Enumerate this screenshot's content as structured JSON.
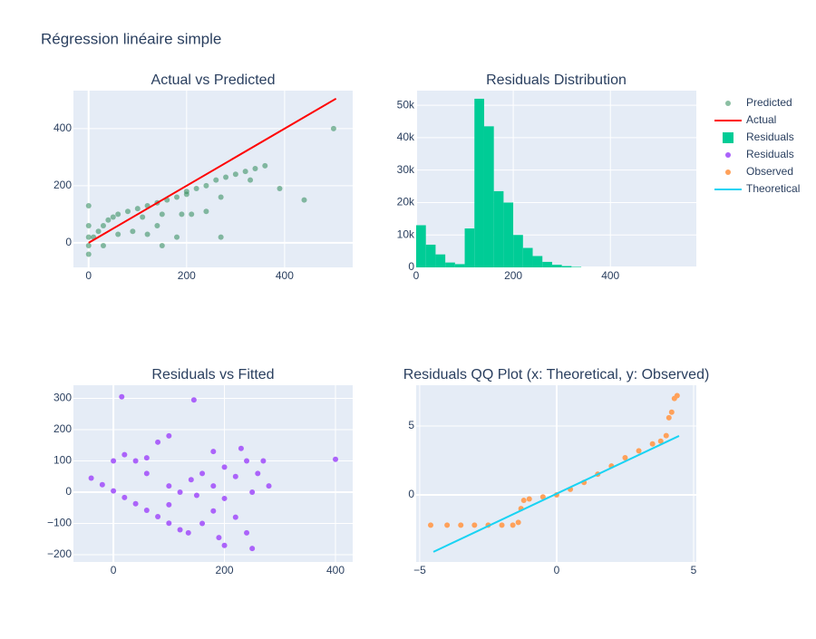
{
  "title": "Régression linéaire simple",
  "chart_data": [
    {
      "type": "scatter",
      "title": "Actual vs Predicted",
      "xlim": [
        -31,
        539
      ],
      "ylim": [
        -86,
        533
      ],
      "xticks": [
        0,
        200,
        400
      ],
      "yticks": [
        0,
        200,
        400
      ],
      "grid": true,
      "series": [
        {
          "name": "Predicted",
          "mode": "markers",
          "color": "#2e8b57",
          "x": [
            0,
            0,
            0,
            0,
            0,
            10,
            20,
            30,
            40,
            50,
            60,
            80,
            100,
            120,
            140,
            160,
            180,
            200,
            220,
            240,
            260,
            280,
            300,
            320,
            340,
            360,
            30,
            60,
            90,
            120,
            150,
            180,
            210,
            240,
            270,
            110,
            150,
            190,
            140,
            200,
            500,
            440,
            390,
            330,
            270
          ],
          "values": [
            -40,
            -10,
            20,
            60,
            130,
            20,
            40,
            60,
            80,
            90,
            100,
            110,
            120,
            130,
            140,
            150,
            160,
            180,
            190,
            200,
            220,
            230,
            240,
            250,
            260,
            270,
            -10,
            30,
            40,
            30,
            -10,
            20,
            100,
            110,
            160,
            90,
            100,
            100,
            60,
            170,
            400,
            150,
            190,
            220,
            20
          ]
        },
        {
          "name": "Actual",
          "mode": "lines",
          "color": "#ff0000",
          "x": [
            0,
            505
          ],
          "values": [
            0,
            505
          ]
        }
      ]
    },
    {
      "type": "histogram",
      "title": "Residuals Distribution",
      "name": "Residuals",
      "color": "#00cc96",
      "xlim": [
        0,
        577
      ],
      "ylim": [
        0,
        54500
      ],
      "xticks": [
        0,
        200,
        400
      ],
      "yticks": [
        0,
        {
          "value": 10000,
          "label": "10k"
        },
        {
          "value": 20000,
          "label": "20k"
        },
        {
          "value": 30000,
          "label": "30k"
        },
        {
          "value": 40000,
          "label": "40k"
        },
        {
          "value": 50000,
          "label": "50k"
        }
      ],
      "grid": true,
      "bins": [
        0,
        20,
        40,
        60,
        80,
        100,
        120,
        140,
        160,
        180,
        200,
        220,
        240,
        260,
        280,
        300,
        320,
        340
      ],
      "values": [
        13000,
        7000,
        4000,
        1500,
        1000,
        12000,
        52000,
        43500,
        23500,
        20000,
        10000,
        6000,
        3500,
        1700,
        800,
        400,
        150
      ]
    },
    {
      "type": "scatter",
      "title": "Residuals vs Fitted",
      "xlim": [
        -72,
        431
      ],
      "ylim": [
        -223,
        342
      ],
      "xticks": [
        0,
        200,
        400
      ],
      "yticks": [
        {
          "value": -200,
          "label": "−200"
        },
        {
          "value": -100,
          "label": "−100"
        },
        0,
        100,
        200,
        300
      ],
      "grid": true,
      "series": [
        {
          "name": "Residuals",
          "mode": "markers",
          "color": "#ab63fa",
          "x": [
            -40,
            -20,
            0,
            20,
            40,
            60,
            80,
            100,
            120,
            135,
            100,
            120,
            140,
            160,
            180,
            200,
            220,
            240,
            260,
            280,
            200,
            180,
            160,
            220,
            240,
            200,
            250,
            20,
            40,
            60,
            80,
            100,
            0,
            60,
            100,
            150,
            250,
            230,
            180,
            270,
            15,
            145,
            400,
            190
          ],
          "values": [
            45,
            24,
            4,
            -17,
            -37,
            -58,
            -78,
            -99,
            -120,
            -130,
            20,
            0,
            40,
            60,
            20,
            80,
            50,
            100,
            60,
            20,
            -20,
            -60,
            -100,
            -80,
            -130,
            -170,
            -180,
            120,
            100,
            110,
            160,
            180,
            100,
            60,
            -40,
            -10,
            0,
            140,
            130,
            100,
            305,
            295,
            105,
            -145
          ]
        }
      ]
    },
    {
      "type": "scatter",
      "title": "Residuals QQ Plot (x: Theoretical, y: Observed)",
      "xlim": [
        -5.13,
        5.1
      ],
      "ylim": [
        -4.87,
        7.96
      ],
      "xticks": [
        {
          "value": -5,
          "label": "−5"
        },
        0,
        5
      ],
      "yticks": [
        0,
        5
      ],
      "grid": true,
      "series": [
        {
          "name": "Observed",
          "mode": "markers",
          "color": "#ffa15a",
          "x": [
            -4.6,
            -4,
            -3.5,
            -3,
            -2.5,
            -2,
            -1.6,
            -1.4,
            -1.3,
            -1.2,
            -1,
            -0.5,
            0,
            0.5,
            1,
            1.5,
            2,
            2.5,
            3,
            3.5,
            3.8,
            4,
            4.1,
            4.2,
            4.3,
            4.4
          ],
          "values": [
            -2.2,
            -2.2,
            -2.2,
            -2.2,
            -2.2,
            -2.2,
            -2.2,
            -2,
            -1,
            -0.4,
            -0.3,
            -0.15,
            0,
            0.4,
            0.9,
            1.5,
            2.1,
            2.7,
            3.2,
            3.7,
            3.9,
            4.3,
            5.6,
            6,
            7,
            7.2
          ]
        },
        {
          "name": "Theoretical",
          "mode": "lines",
          "color": "#19d3f3",
          "x": [
            -4.5,
            4.47
          ],
          "values": [
            -4.14,
            4.28
          ]
        }
      ]
    }
  ]
}
